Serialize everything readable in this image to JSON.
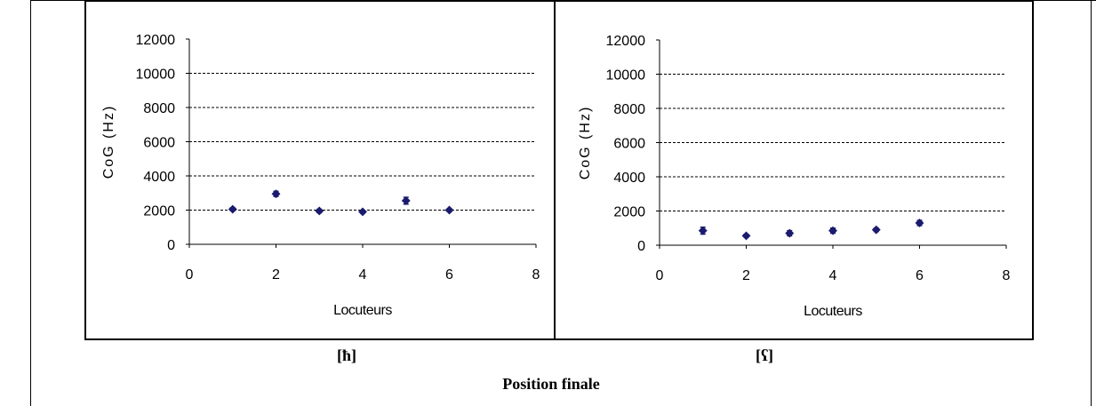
{
  "caption_left": "[ħ]",
  "caption_right": "[ʕ]",
  "footer_title": "Position finale",
  "marker_color": "#1a1a6e",
  "chart_data": [
    {
      "type": "scatter",
      "title": "",
      "xlabel": "Locuteurs",
      "ylabel": "CoG (Hz)",
      "xlim": [
        0,
        8
      ],
      "ylim": [
        0,
        12000
      ],
      "xticks": [
        "0",
        "2",
        "4",
        "6",
        "8"
      ],
      "yticks": [
        "0",
        "2000",
        "4000",
        "6000",
        "8000",
        "10000",
        "12000"
      ],
      "grid": "horizontal dashed",
      "series": [
        {
          "x": [
            1,
            2,
            3,
            4,
            5,
            6
          ],
          "y": [
            2050,
            2950,
            1950,
            1900,
            2550,
            2000
          ],
          "err": [
            80,
            150,
            100,
            80,
            200,
            80
          ]
        }
      ]
    },
    {
      "type": "scatter",
      "title": "",
      "xlabel": "Locuteurs",
      "ylabel": "CoG (Hz)",
      "xlim": [
        0,
        8
      ],
      "ylim": [
        0,
        12000
      ],
      "xticks": [
        "0",
        "2",
        "4",
        "6",
        "8"
      ],
      "yticks": [
        "0",
        "2000",
        "4000",
        "6000",
        "8000",
        "10000",
        "12000"
      ],
      "grid": "horizontal dashed",
      "series": [
        {
          "x": [
            1,
            2,
            3,
            4,
            5,
            6
          ],
          "y": [
            850,
            550,
            700,
            850,
            900,
            1300
          ],
          "err": [
            200,
            80,
            150,
            150,
            100,
            150
          ]
        }
      ]
    }
  ]
}
